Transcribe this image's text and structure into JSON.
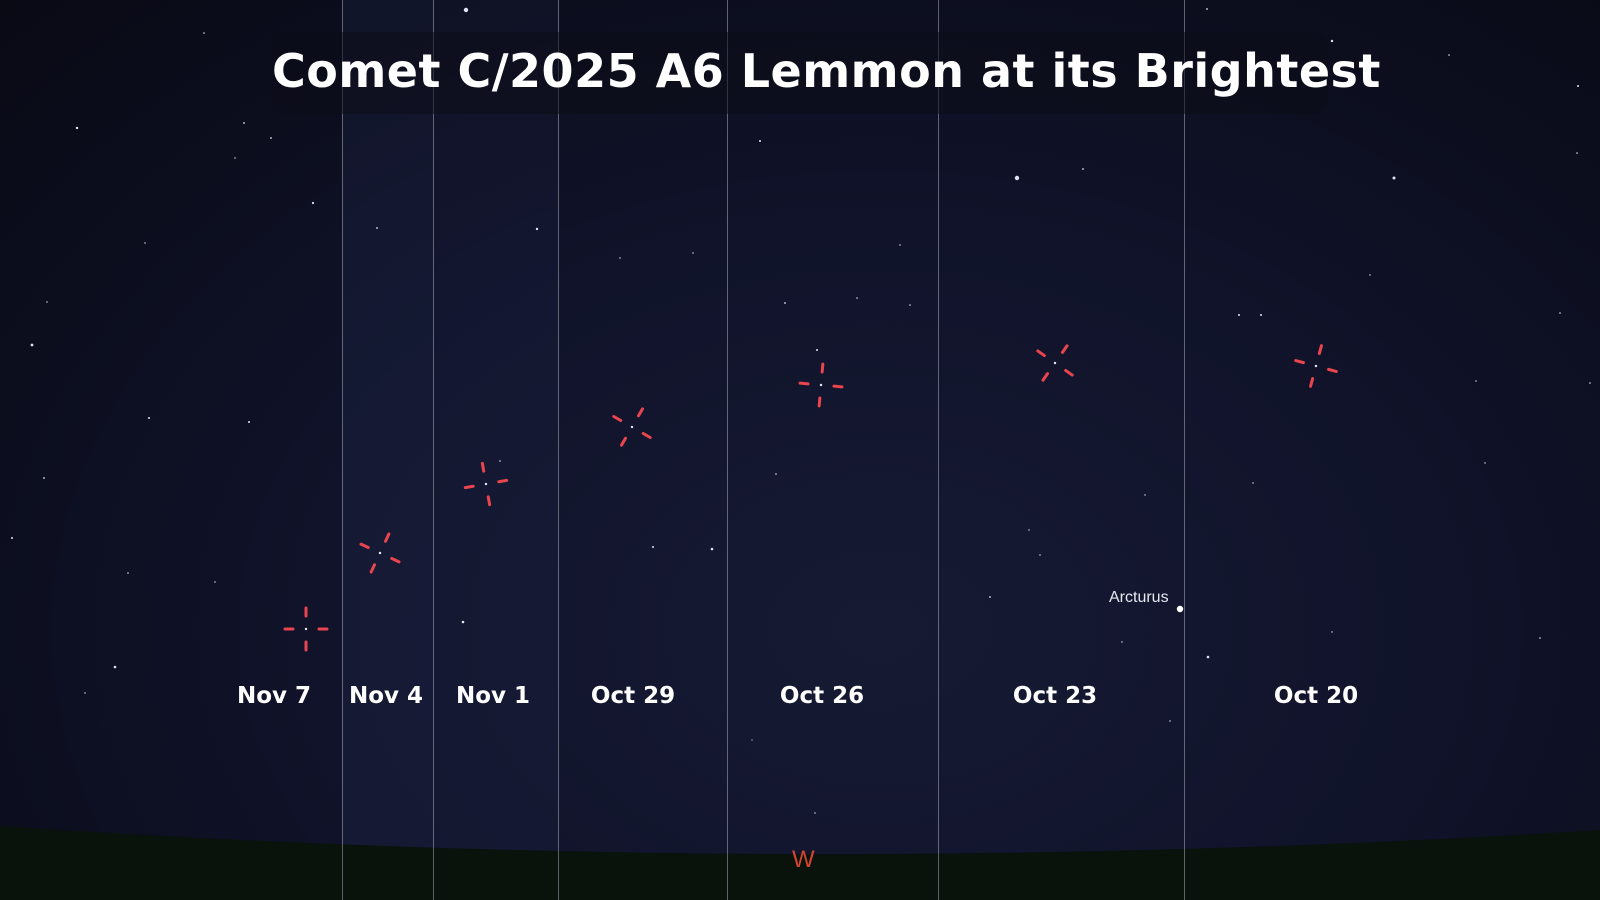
{
  "title": "Comet C/2025 A6 Lemmon at its Brightest",
  "panels": [
    {
      "date": "Nov 7"
    },
    {
      "date": "Nov 4"
    },
    {
      "date": "Nov 1"
    },
    {
      "date": "Oct 29"
    },
    {
      "date": "Oct 26"
    },
    {
      "date": "Oct 23"
    },
    {
      "date": "Oct 20"
    }
  ],
  "star_label": "Arcturus",
  "compass_direction": "W",
  "colors": {
    "marker": "#e8454f",
    "compass": "#d2442e",
    "sky": "#10132a",
    "ground": "#0a120c",
    "label": "#ffffff"
  }
}
